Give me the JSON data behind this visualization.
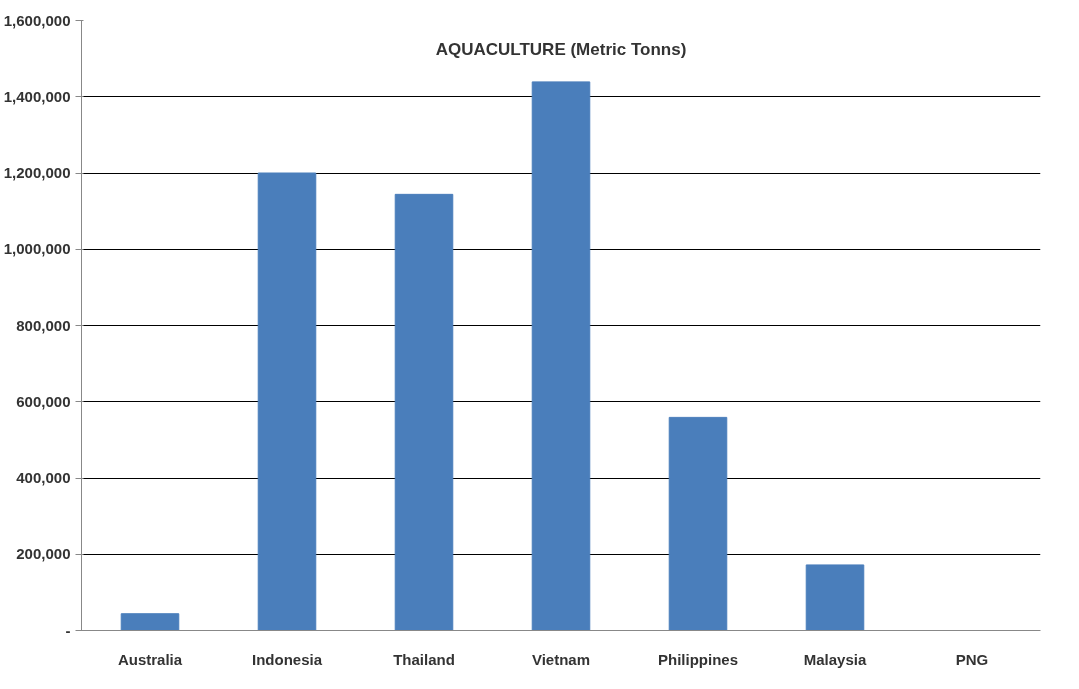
{
  "chart_data": {
    "type": "bar",
    "title": "AQUACULTURE (Metric Tonns)",
    "categories": [
      "Australia",
      "Indonesia",
      "Thailand",
      "Vietnam",
      "Philippines",
      "Malaysia",
      "PNG"
    ],
    "values": [
      44000,
      1200000,
      1144000,
      1439000,
      559000,
      172000,
      0
    ],
    "color": "#4a7ebb",
    "ylim": [
      0,
      1600000
    ],
    "yticks": [
      {
        "value": 0,
        "label": "-"
      },
      {
        "value": 200000,
        "label": "200,000"
      },
      {
        "value": 400000,
        "label": "400,000"
      },
      {
        "value": 600000,
        "label": "600,000"
      },
      {
        "value": 800000,
        "label": "800,000"
      },
      {
        "value": 1000000,
        "label": "1,000,000"
      },
      {
        "value": 1200000,
        "label": "1,200,000"
      },
      {
        "value": 1400000,
        "label": "1,400,000"
      },
      {
        "value": 1600000,
        "label": "1,600,000"
      }
    ],
    "grid": "y"
  }
}
